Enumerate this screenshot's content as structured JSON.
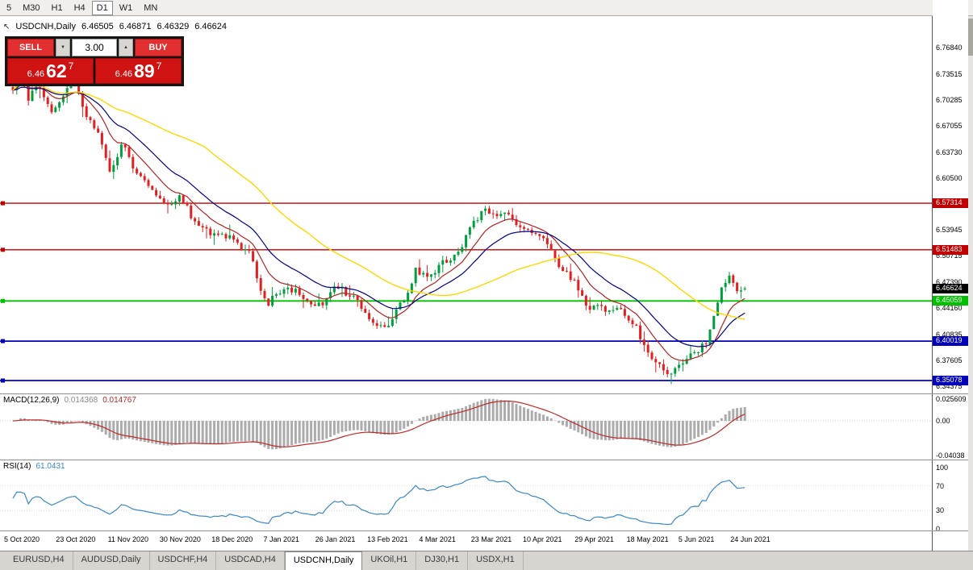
{
  "app": {
    "toolbar": {
      "timeframes": [
        "5",
        "M30",
        "H1",
        "H4",
        "D1",
        "W1",
        "MN"
      ],
      "active_timeframe": "D1"
    },
    "chart_header": {
      "symbol": "USDCNH,Daily",
      "open": "6.46505",
      "high": "6.46871",
      "low": "6.46329",
      "close": "6.46624"
    },
    "trade_panel": {
      "sell_label": "SELL",
      "buy_label": "BUY",
      "volume": "3.00",
      "sell_price": {
        "prefix": "6.46",
        "big": "62",
        "sup": "7"
      },
      "buy_price": {
        "prefix": "6.46",
        "big": "89",
        "sup": "7"
      }
    },
    "tabs": [
      {
        "label": "EURUSD,H4"
      },
      {
        "label": "AUDUSD,Daily"
      },
      {
        "label": "USDCHF,H4"
      },
      {
        "label": "USDCAD,H4"
      },
      {
        "label": "USDCNH,Daily",
        "active": true
      },
      {
        "label": "UKOil,H1"
      },
      {
        "label": "DJ30,H1"
      },
      {
        "label": "USDX,H1"
      }
    ],
    "icons": {
      "cursor": "↖",
      "spin_up": "▲",
      "spin_down": "▼"
    }
  },
  "chart_data": {
    "type": "candlestick",
    "symbol": "USDCNH",
    "timeframe": "Daily",
    "current_ohlc": {
      "open": 6.46505,
      "high": 6.46871,
      "low": 6.46329,
      "close": 6.46624
    },
    "y_range": [
      6.335,
      6.798
    ],
    "y_axis_ticks": [
      {
        "label": "6.76840",
        "value": 6.7684
      },
      {
        "label": "6.73515",
        "value": 6.73515
      },
      {
        "label": "6.70285",
        "value": 6.70285
      },
      {
        "label": "6.67055",
        "value": 6.67055
      },
      {
        "label": "6.63730",
        "value": 6.6373
      },
      {
        "label": "6.60500",
        "value": 6.605
      },
      {
        "label": "6.53945",
        "value": 6.53945
      },
      {
        "label": "6.50715",
        "value": 6.50715
      },
      {
        "label": "6.47390",
        "value": 6.4739
      },
      {
        "label": "6.44160",
        "value": 6.4416
      },
      {
        "label": "6.40835",
        "value": 6.40835
      },
      {
        "label": "6.37605",
        "value": 6.37605
      },
      {
        "label": "6.34375",
        "value": 6.34375
      }
    ],
    "levels": [
      {
        "label": "6.57314",
        "value": 6.57314,
        "color": "#C00000",
        "line_width": 1.4,
        "handle": true
      },
      {
        "label": "6.51483",
        "value": 6.51483,
        "color": "#C00000",
        "line_width": 1.4,
        "handle": true
      },
      {
        "label": "6.46624",
        "value": 6.46624,
        "color": "#000000",
        "line": false
      },
      {
        "label": "6.45059",
        "value": 6.45059,
        "color": "#00C000",
        "line_width": 1.8,
        "handle": true
      },
      {
        "label": "6.40019",
        "value": 6.40019,
        "color": "#0000B8",
        "line_width": 1.8,
        "handle": true
      },
      {
        "label": "6.35078",
        "value": 6.35078,
        "color": "#0000B8",
        "line_width": 1.8,
        "handle": true
      }
    ],
    "x_axis_dates": [
      "5 Oct 2020",
      "23 Oct 2020",
      "11 Nov 2020",
      "30 Nov 2020",
      "18 Dec 2020",
      "7 Jan 2021",
      "26 Jan 2021",
      "13 Feb 2021",
      "4 Mar 2021",
      "23 Mar 2021",
      "10 Apr 2021",
      "29 Apr 2021",
      "18 May 2021",
      "5 Jun 2021",
      "24 Jun 2021"
    ],
    "candles": {
      "count": 190,
      "up_color": "#009E3C",
      "down_color": "#E02020",
      "trend_anchors": [
        [
          0,
          6.715
        ],
        [
          2,
          6.742
        ],
        [
          4,
          6.705
        ],
        [
          7,
          6.722
        ],
        [
          10,
          6.695
        ],
        [
          13,
          6.705
        ],
        [
          16,
          6.728
        ],
        [
          19,
          6.682
        ],
        [
          22,
          6.655
        ],
        [
          25,
          6.612
        ],
        [
          28,
          6.648
        ],
        [
          31,
          6.618
        ],
        [
          34,
          6.602
        ],
        [
          37,
          6.578
        ],
        [
          40,
          6.572
        ],
        [
          43,
          6.585
        ],
        [
          46,
          6.558
        ],
        [
          49,
          6.548
        ],
        [
          52,
          6.535
        ],
        [
          55,
          6.528
        ],
        [
          58,
          6.53
        ],
        [
          61,
          6.508
        ],
        [
          64,
          6.468
        ],
        [
          66,
          6.442
        ],
        [
          68,
          6.458
        ],
        [
          71,
          6.475
        ],
        [
          74,
          6.462
        ],
        [
          77,
          6.448
        ],
        [
          80,
          6.452
        ],
        [
          83,
          6.478
        ],
        [
          86,
          6.462
        ],
        [
          89,
          6.448
        ],
        [
          92,
          6.432
        ],
        [
          95,
          6.415
        ],
        [
          98,
          6.422
        ],
        [
          101,
          6.452
        ],
        [
          104,
          6.49
        ],
        [
          107,
          6.478
        ],
        [
          110,
          6.495
        ],
        [
          113,
          6.505
        ],
        [
          116,
          6.52
        ],
        [
          119,
          6.552
        ],
        [
          122,
          6.568
        ],
        [
          125,
          6.548
        ],
        [
          128,
          6.562
        ],
        [
          131,
          6.542
        ],
        [
          134,
          6.528
        ],
        [
          137,
          6.518
        ],
        [
          140,
          6.498
        ],
        [
          143,
          6.488
        ],
        [
          146,
          6.468
        ],
        [
          149,
          6.442
        ],
        [
          152,
          6.452
        ],
        [
          155,
          6.438
        ],
        [
          158,
          6.432
        ],
        [
          161,
          6.412
        ],
        [
          164,
          6.388
        ],
        [
          167,
          6.365
        ],
        [
          170,
          6.357
        ],
        [
          173,
          6.378
        ],
        [
          176,
          6.388
        ],
        [
          179,
          6.402
        ],
        [
          181,
          6.43
        ],
        [
          183,
          6.468
        ],
        [
          185,
          6.478
        ],
        [
          187,
          6.458
        ],
        [
          189,
          6.46624
        ]
      ]
    },
    "moving_averages": [
      {
        "method": "ema",
        "period": 10,
        "color": "#B22222",
        "width": 1.2
      },
      {
        "method": "ema",
        "period": 21,
        "color": "#00008B",
        "width": 1.2
      },
      {
        "method": "sma",
        "period": 50,
        "color": "#FFD700",
        "width": 1.4
      }
    ],
    "macd": {
      "label": "MACD(12,26,9)",
      "main_value": "0.014368",
      "signal_value": "0.014767",
      "fast": 12,
      "slow": 26,
      "signal_period": 9,
      "histogram_color": "#ABABAB",
      "signal_color": "#C22626",
      "axis": [
        {
          "label": "0.025609",
          "value": 0.025609
        },
        {
          "label": "0.00",
          "value": 0
        },
        {
          "label": "-0.04038",
          "value": -0.04038
        }
      ]
    },
    "rsi": {
      "label": "RSI(14)",
      "value": "61.0431",
      "period": 14,
      "color": "#3A87C8",
      "levels": [
        30,
        70
      ],
      "axis": [
        {
          "label": "100",
          "value": 100
        },
        {
          "label": "70",
          "value": 70
        },
        {
          "label": "30",
          "value": 30
        },
        {
          "label": "0",
          "value": 0
        }
      ]
    }
  }
}
